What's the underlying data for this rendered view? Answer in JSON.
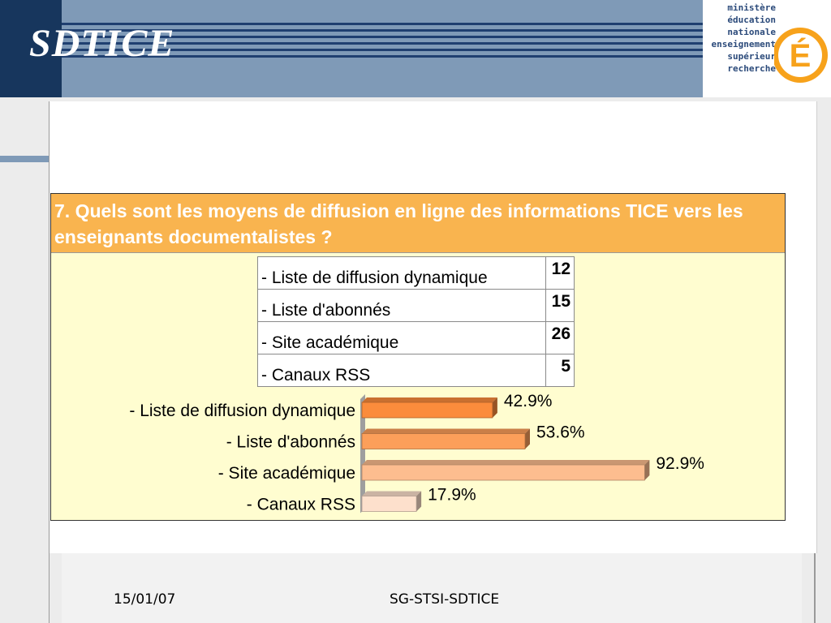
{
  "header": {
    "title": "SDTICE",
    "logo_lines": [
      "ministère",
      "éducation",
      "nationale",
      "enseignement",
      "supérieur",
      "recherche"
    ],
    "logo_mark": "É"
  },
  "question": {
    "title": "7. Quels sont les moyens de diffusion en ligne des informations TICE vers les enseignants documentalistes ?"
  },
  "table": {
    "rows": [
      {
        "label": "- Liste de diffusion dynamique",
        "value": "12"
      },
      {
        "label": "- Liste d'abonnés",
        "value": "15"
      },
      {
        "label": "- Site académique",
        "value": "26"
      },
      {
        "label": "- Canaux RSS",
        "value": "5"
      }
    ]
  },
  "chart_data": {
    "type": "bar",
    "orientation": "horizontal",
    "categories": [
      "- Liste de diffusion dynamique",
      "- Liste d'abonnés",
      "- Site académique",
      "- Canaux RSS"
    ],
    "values": [
      42.9,
      53.6,
      92.9,
      17.9
    ],
    "value_labels": [
      "42.9%",
      "53.6%",
      "92.9%",
      "17.9%"
    ],
    "unit": "%",
    "xlim": [
      0,
      100
    ],
    "grid": false,
    "colors": [
      "#fb8c3c",
      "#fc9f5a",
      "#fdbd8f",
      "#fde0cc"
    ]
  },
  "footer": {
    "date": "15/01/07",
    "center": "SG-STSI-SDTICE"
  }
}
